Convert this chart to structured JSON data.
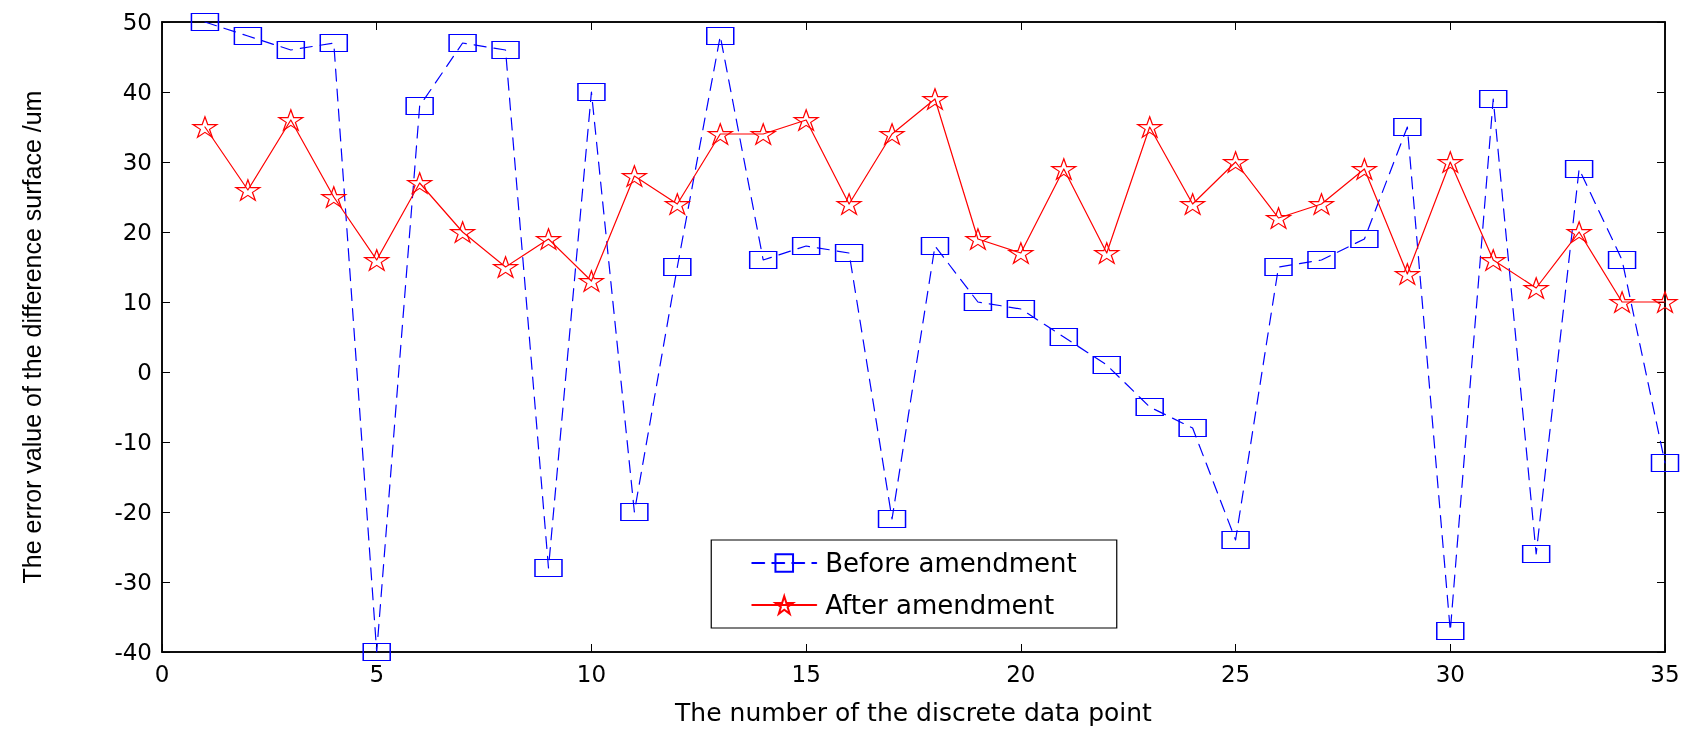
{
  "chart_data": {
    "type": "line",
    "xlabel": "The number of the discrete data point",
    "ylabel": "The error value of the difference surface /um",
    "x": [
      1,
      2,
      3,
      4,
      5,
      6,
      7,
      8,
      9,
      10,
      11,
      12,
      13,
      14,
      15,
      16,
      17,
      18,
      19,
      20,
      21,
      22,
      23,
      24,
      25,
      26,
      27,
      28,
      29,
      30,
      31,
      32,
      33,
      34,
      35
    ],
    "xlim": [
      0,
      35
    ],
    "xticks": [
      0,
      5,
      10,
      15,
      20,
      25,
      30,
      35
    ],
    "ylim": [
      -40,
      50
    ],
    "yticks": [
      -40,
      -30,
      -20,
      -10,
      0,
      10,
      20,
      30,
      40,
      50
    ],
    "grid": false,
    "legend": "bottom",
    "series": [
      {
        "name": "Before amendment",
        "color": "#0000ff",
        "marker": "square",
        "line_style": "dashed",
        "values": [
          50,
          48,
          46,
          47,
          -40,
          38,
          47,
          46,
          -28,
          40,
          -20,
          15,
          48,
          16,
          18,
          17,
          -21,
          18,
          10,
          9,
          5,
          1,
          -5,
          -8,
          -24,
          15,
          16,
          19,
          35,
          -37,
          39,
          -26,
          29,
          16,
          -13
        ]
      },
      {
        "name": "After amendment",
        "color": "#ff0000",
        "marker": "star",
        "line_style": "solid",
        "values": [
          35,
          26,
          36,
          25,
          16,
          27,
          20,
          15,
          19,
          13,
          28,
          24,
          34,
          34,
          36,
          24,
          34,
          39,
          19,
          17,
          29,
          17,
          35,
          24,
          30,
          22,
          24,
          29,
          14,
          30,
          16,
          12,
          20,
          10,
          10
        ]
      }
    ]
  }
}
